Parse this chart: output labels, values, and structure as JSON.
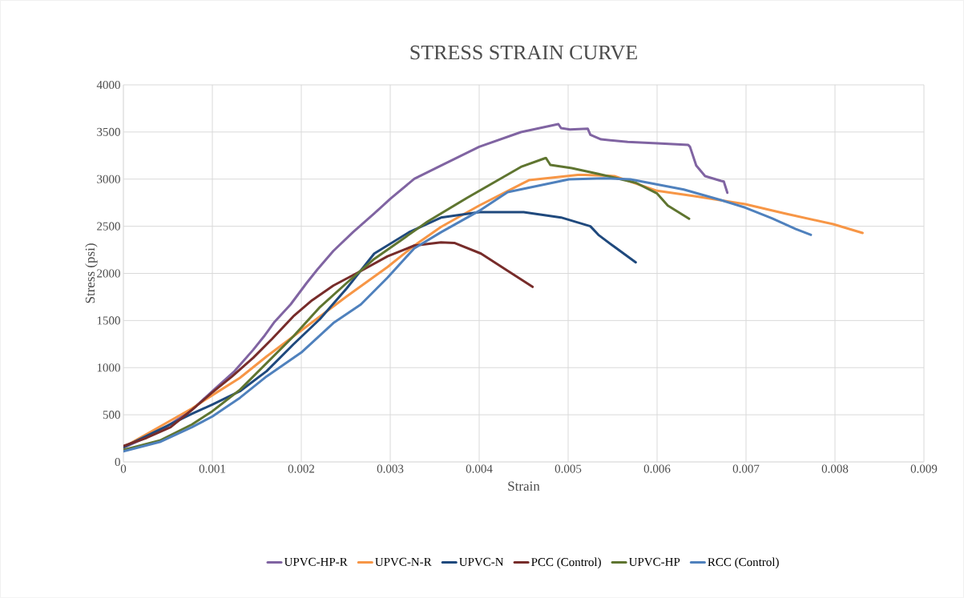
{
  "chart_data": {
    "type": "line",
    "title": "STRESS STRAIN CURVE",
    "xlabel": "Strain",
    "ylabel": "Stress (psi)",
    "xlim": [
      0,
      0.009
    ],
    "xticks": [
      0,
      0.001,
      0.002,
      0.003,
      0.004,
      0.005,
      0.006,
      0.007,
      0.008,
      0.009
    ],
    "ylim": [
      0,
      4000
    ],
    "yticks": [
      0,
      500,
      1000,
      1500,
      2000,
      2500,
      3000,
      3500,
      4000
    ],
    "grid": true,
    "legend": "bottom",
    "series": [
      {
        "name": "UPVC-HP-R",
        "color": "#8064a2",
        "x": [
          0,
          0.00041,
          0.00077,
          0.001,
          0.00125,
          0.00146,
          0.00158,
          0.0017,
          0.00188,
          0.00206,
          0.00218,
          0.00236,
          0.00258,
          0.00282,
          0.003,
          0.00327,
          0.00357,
          0.004,
          0.00447,
          0.00489,
          0.00492,
          0.00502,
          0.00522,
          0.00525,
          0.00537,
          0.00567,
          0.006,
          0.00635,
          0.00637,
          0.00644,
          0.00654,
          0.00672,
          0.00675,
          0.00679
        ],
        "values": [
          150,
          326,
          552,
          750,
          963,
          1190,
          1331,
          1487,
          1671,
          1898,
          2040,
          2238,
          2436,
          2635,
          2790,
          3003,
          3144,
          3343,
          3499,
          3584,
          3541,
          3527,
          3536,
          3471,
          3422,
          3394,
          3380,
          3363,
          3343,
          3145,
          3032,
          2981,
          2975,
          2856
        ]
      },
      {
        "name": "UPVC-N-R",
        "color": "#f79646",
        "x": [
          0,
          0.00077,
          0.001,
          0.00131,
          0.00161,
          0.00191,
          0.00221,
          0.00251,
          0.00297,
          0.00327,
          0.00357,
          0.004,
          0.00447,
          0.00456,
          0.00513,
          0.00552,
          0.006,
          0.00642,
          0.00699,
          0.00744,
          0.00798,
          0.00831
        ],
        "values": [
          156,
          567,
          708,
          892,
          1119,
          1331,
          1544,
          1756,
          2068,
          2295,
          2493,
          2720,
          2946,
          2989,
          3046,
          3032,
          2876,
          2820,
          2735,
          2635,
          2522,
          2429
        ]
      },
      {
        "name": "UPVC-N",
        "color": "#1f497d",
        "x": [
          0,
          0.00077,
          0.001,
          0.00131,
          0.00161,
          0.00191,
          0.00221,
          0.00251,
          0.00282,
          0.00321,
          0.00357,
          0.004,
          0.0045,
          0.00492,
          0.00525,
          0.00534,
          0.00552,
          0.00576
        ],
        "values": [
          156,
          510,
          609,
          750,
          963,
          1246,
          1516,
          1841,
          2210,
          2436,
          2592,
          2649,
          2650,
          2593,
          2500,
          2409,
          2282,
          2117
        ]
      },
      {
        "name": "PCC (Control)",
        "color": "#772c2a",
        "x": [
          0,
          0.00026,
          0.00053,
          0.00077,
          0.001,
          0.00122,
          0.00146,
          0.00167,
          0.00191,
          0.00212,
          0.00236,
          0.00267,
          0.00297,
          0.00327,
          0.00357,
          0.00372,
          0.00402,
          0.00432,
          0.0046
        ],
        "values": [
          170,
          255,
          368,
          552,
          737,
          906,
          1105,
          1303,
          1544,
          1714,
          1870,
          2025,
          2181,
          2295,
          2329,
          2323,
          2210,
          2027,
          1857
        ]
      },
      {
        "name": "UPVC-HP",
        "color": "#5f7530",
        "x": [
          0,
          0.00041,
          0.00077,
          0.001,
          0.00131,
          0.00161,
          0.00191,
          0.00221,
          0.00251,
          0.00282,
          0.00312,
          0.00342,
          0.00387,
          0.00447,
          0.00475,
          0.0048,
          0.00504,
          0.00534,
          0.00576,
          0.006,
          0.00612,
          0.00636
        ],
        "values": [
          127,
          227,
          397,
          538,
          765,
          1048,
          1331,
          1643,
          1898,
          2153,
          2351,
          2550,
          2805,
          3130,
          3225,
          3151,
          3117,
          3055,
          2962,
          2848,
          2720,
          2579
        ]
      },
      {
        "name": "RCC (Control)",
        "color": "#4f81bd",
        "x": [
          0,
          0.00041,
          0.00077,
          0.001,
          0.00131,
          0.00161,
          0.002,
          0.00236,
          0.00267,
          0.00297,
          0.00327,
          0.00357,
          0.004,
          0.00432,
          0.00501,
          0.0054,
          0.0057,
          0.0063,
          0.00672,
          0.00699,
          0.00729,
          0.00756,
          0.00773
        ],
        "values": [
          113,
          212,
          368,
          482,
          680,
          907,
          1161,
          1473,
          1671,
          1955,
          2266,
          2436,
          2663,
          2862,
          2998,
          3009,
          2998,
          2890,
          2777,
          2698,
          2584,
          2471,
          2409
        ]
      }
    ]
  }
}
